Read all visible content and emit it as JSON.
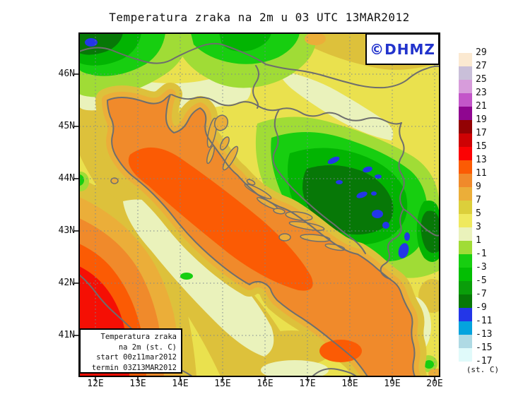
{
  "title": "Temperatura zraka na 2m u 03 UTC 13MAR2012",
  "watermark": {
    "label": "©DHMZ",
    "color": "#2233CC"
  },
  "legend_box": {
    "lines": [
      "Temperatura zraka",
      "na 2m (st. C)",
      "start 00z11mar2012",
      "termin 03Z13MAR2012"
    ]
  },
  "axes": {
    "lat_labels": [
      "41N",
      "42N",
      "43N",
      "44N",
      "45N",
      "46N"
    ],
    "lon_labels": [
      "12E",
      "13E",
      "14E",
      "15E",
      "16E",
      "17E",
      "18E",
      "19E",
      "20E"
    ]
  },
  "colorbar": {
    "unit_label": "(st. C)",
    "levels": [
      29,
      27,
      25,
      23,
      21,
      19,
      17,
      15,
      13,
      11,
      9,
      7,
      5,
      3,
      1,
      -1,
      -3,
      -5,
      -7,
      -9,
      -11,
      -13,
      -15,
      -17
    ],
    "colors": [
      "#FBE9D1",
      "#C9BFD9",
      "#D79CDB",
      "#C356C9",
      "#8F0690",
      "#930204",
      "#CE0204",
      "#FB0204",
      "#FB5B04",
      "#F08A2B",
      "#EBAE39",
      "#DCCF3B",
      "#EFE95E",
      "#EAF2BB",
      "#A0DC36",
      "#17CE10",
      "#03BE03",
      "#0A9E0A",
      "#077807",
      "#2336E8",
      "#04A3DE",
      "#AFDAE4",
      "#E0FAFA"
    ]
  },
  "palette": {
    "land_yellow": "#EAE14E",
    "land_gold": "#DDC13B",
    "coast_amber": "#EBAE39",
    "sea_orange": "#F08A2B",
    "sea_core_orange": "#FB5B04",
    "warm_red": "#F50F04",
    "pale_cream": "#EAF2BB",
    "yellow_green": "#A0DC36",
    "bright_green": "#17CE10",
    "mid_green": "#02B402",
    "dark_green": "#077807",
    "cold_blue": "#2336E8",
    "border_gray": "#6E6E6E",
    "grid_gray": "#7A8691",
    "frame_black": "#000000",
    "logo_blue": "#2233CC"
  }
}
